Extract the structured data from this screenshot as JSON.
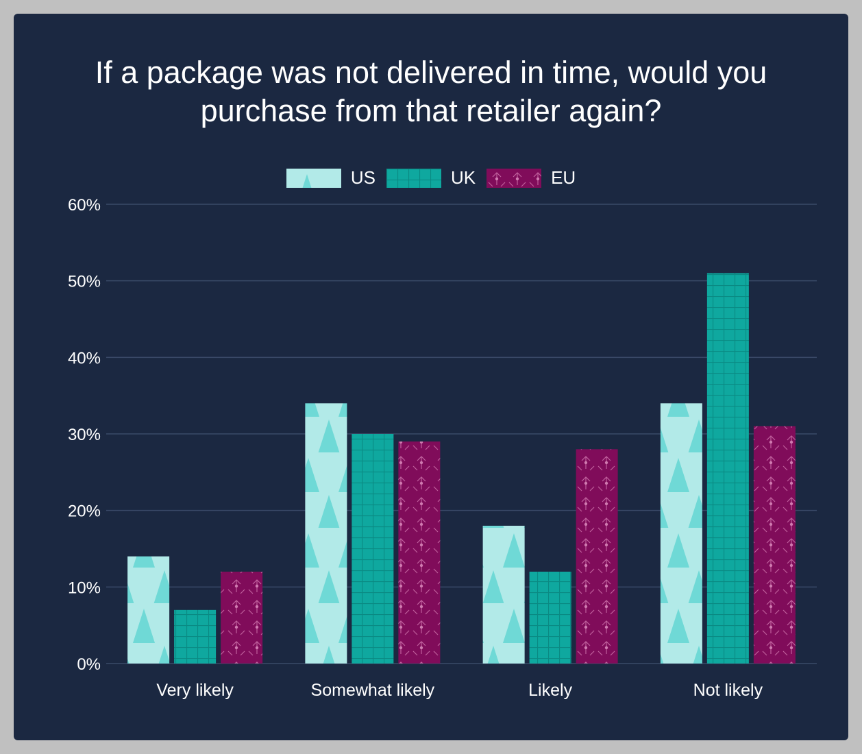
{
  "chart_data": {
    "type": "bar",
    "title": "If a package was not delivered in time, would you purchase from that retailer again?",
    "categories": [
      "Very likely",
      "Somewhat likely",
      "Likely",
      "Not likely"
    ],
    "series": [
      {
        "name": "US",
        "values": [
          14,
          34,
          18,
          34
        ],
        "color": "#b2eae8",
        "pattern": "triangles"
      },
      {
        "name": "UK",
        "values": [
          7,
          30,
          12,
          51
        ],
        "color": "#0fa89f",
        "pattern": "grid"
      },
      {
        "name": "EU",
        "values": [
          12,
          29,
          28,
          31
        ],
        "color": "#800c5a",
        "pattern": "stars"
      }
    ],
    "y_ticks": [
      "0%",
      "10%",
      "20%",
      "30%",
      "40%",
      "50%",
      "60%"
    ],
    "ylim": [
      0,
      60
    ],
    "xlabel": "",
    "ylabel": "",
    "legend_position": "top-center",
    "grid": true
  },
  "colors": {
    "background": "#1b2841",
    "frame": "#c0c0c0",
    "gridline": "#3a4a68",
    "text": "#ffffff"
  }
}
